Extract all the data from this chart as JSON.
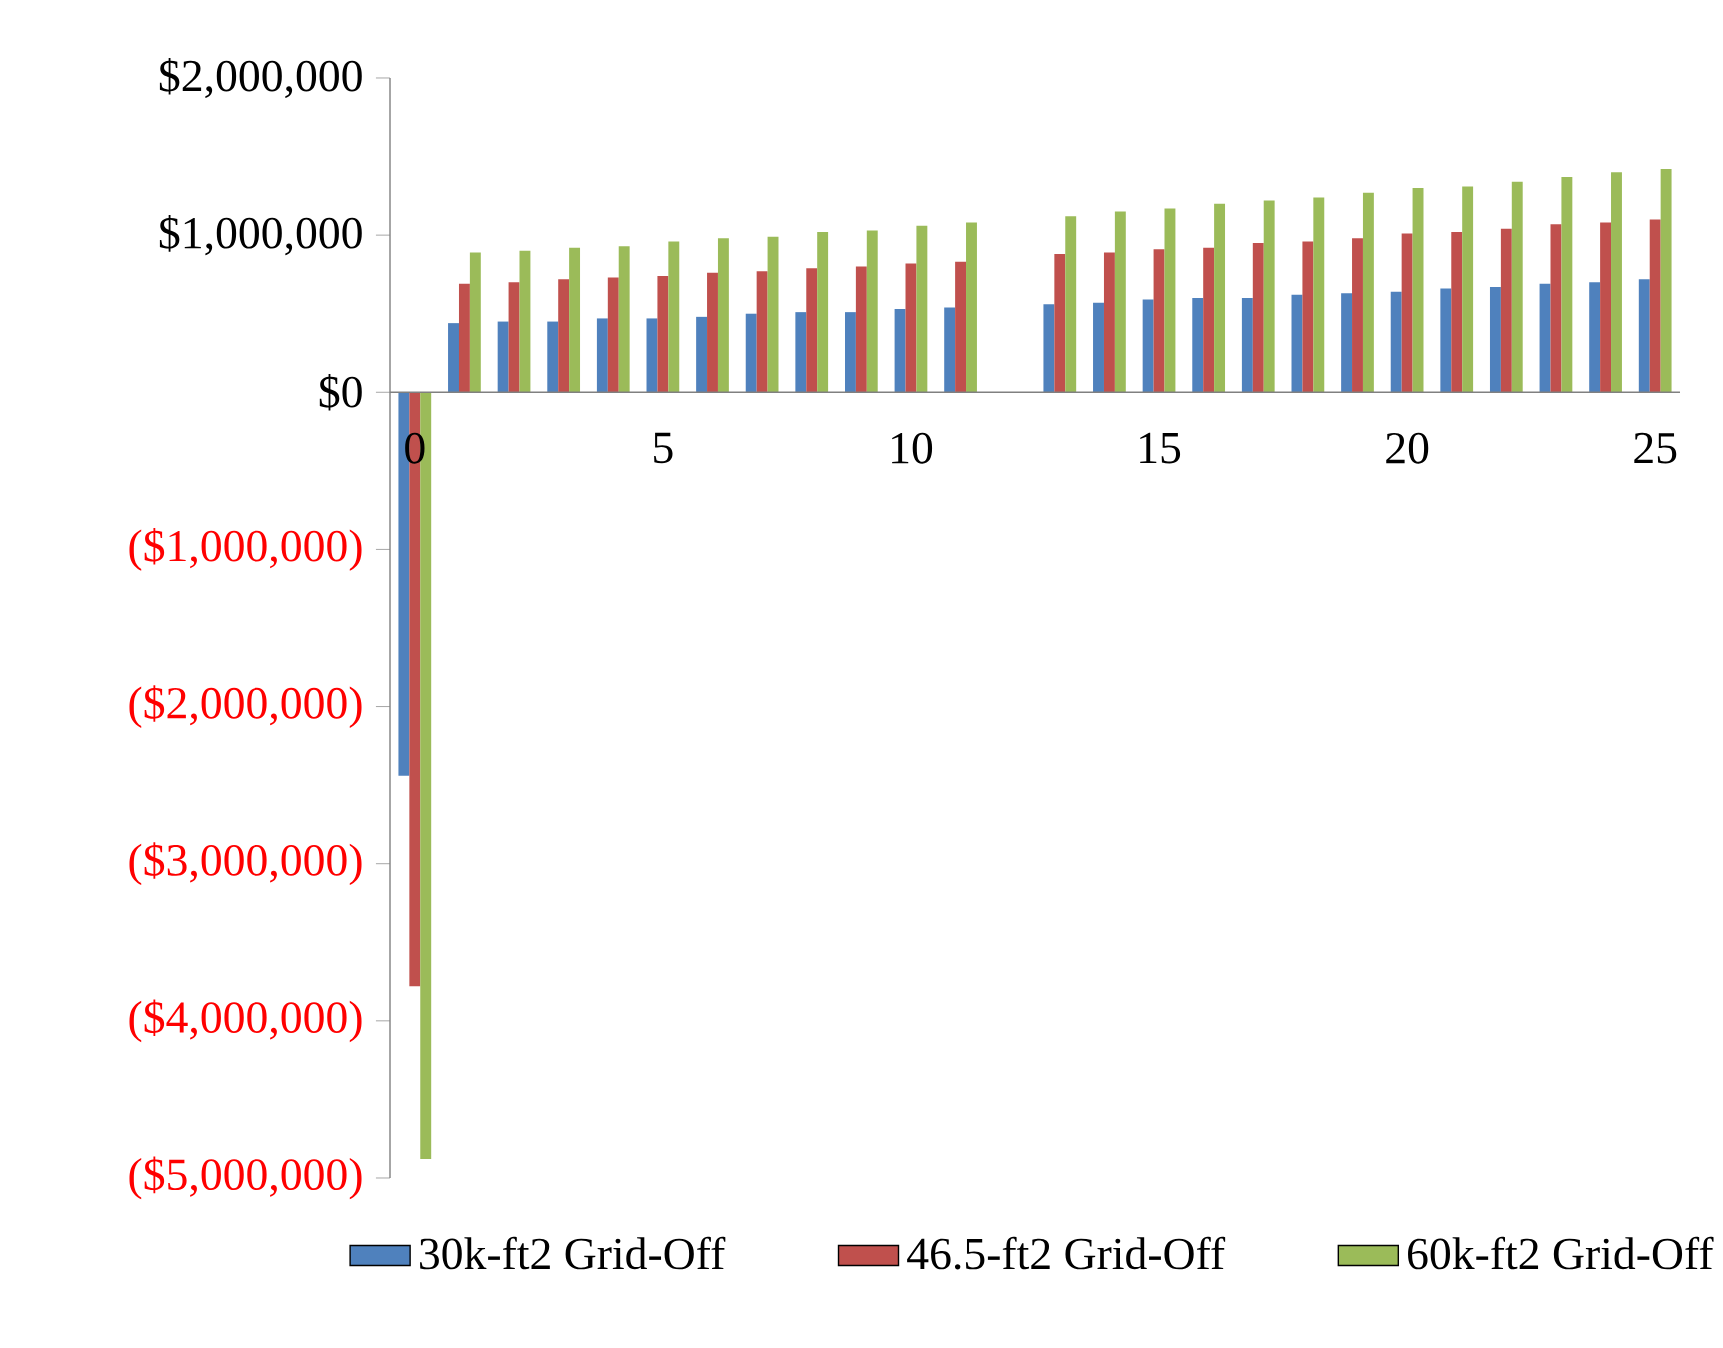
{
  "chart_data": {
    "type": "bar",
    "categories": [
      "0",
      null,
      null,
      null,
      null,
      "5",
      null,
      null,
      null,
      null,
      "10",
      null,
      null,
      null,
      null,
      "15",
      null,
      null,
      null,
      null,
      "20",
      null,
      null,
      null,
      null,
      "25"
    ],
    "series": [
      {
        "name": "30k-ft2 Grid-Off",
        "color": "#4f81bd",
        "values": [
          -2440000,
          440000,
          450000,
          450000,
          470000,
          470000,
          480000,
          500000,
          510000,
          510000,
          530000,
          540000,
          null,
          560000,
          570000,
          590000,
          600000,
          600000,
          620000,
          630000,
          640000,
          660000,
          670000,
          690000,
          700000,
          720000
        ]
      },
      {
        "name": "46.5-ft2 Grid-Off",
        "color": "#c0504d",
        "values": [
          -3780000,
          690000,
          700000,
          720000,
          730000,
          740000,
          760000,
          770000,
          790000,
          800000,
          820000,
          830000,
          null,
          880000,
          890000,
          910000,
          920000,
          950000,
          960000,
          980000,
          1010000,
          1020000,
          1040000,
          1070000,
          1080000,
          1100000
        ]
      },
      {
        "name": "60k-ft2 Grid-Off",
        "color": "#9bbb59",
        "values": [
          -4880000,
          890000,
          900000,
          920000,
          930000,
          960000,
          980000,
          990000,
          1020000,
          1030000,
          1060000,
          1080000,
          null,
          1120000,
          1150000,
          1170000,
          1200000,
          1220000,
          1240000,
          1270000,
          1300000,
          1310000,
          1340000,
          1370000,
          1400000,
          1420000
        ]
      }
    ],
    "ylim": [
      -5000000,
      2000000
    ],
    "yticks": [
      {
        "value": -5000000,
        "label": "($5,000,000)"
      },
      {
        "value": -4000000,
        "label": "($4,000,000)"
      },
      {
        "value": -3000000,
        "label": "($3,000,000)"
      },
      {
        "value": -2000000,
        "label": "($2,000,000)"
      },
      {
        "value": -1000000,
        "label": "($1,000,000)"
      },
      {
        "value": 0,
        "label": "$0"
      },
      {
        "value": 1000000,
        "label": "$1,000,000"
      },
      {
        "value": 2000000,
        "label": "$2,000,000"
      }
    ],
    "legend": "bottom",
    "grid": false
  }
}
